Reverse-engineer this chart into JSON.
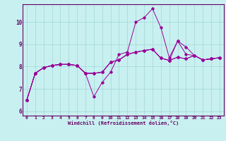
{
  "title": "",
  "xlabel": "Windchill (Refroidissement éolien,°C)",
  "ylabel": "",
  "bg_color": "#c8f0f0",
  "line_color": "#990099",
  "grid_color": "#a8dada",
  "axis_color": "#660066",
  "xlim": [
    -0.5,
    23.5
  ],
  "ylim": [
    5.8,
    10.8
  ],
  "xticks": [
    0,
    1,
    2,
    3,
    4,
    5,
    6,
    7,
    8,
    9,
    10,
    11,
    12,
    13,
    14,
    15,
    16,
    17,
    18,
    19,
    20,
    21,
    22,
    23
  ],
  "yticks": [
    6,
    7,
    8,
    9,
    10
  ],
  "series": [
    [
      6.5,
      7.7,
      7.95,
      8.05,
      8.1,
      8.1,
      8.05,
      7.7,
      6.65,
      7.3,
      7.75,
      8.55,
      8.65,
      10.0,
      10.2,
      10.6,
      9.75,
      8.4,
      9.15,
      8.55,
      8.5,
      8.3,
      8.35,
      8.4
    ],
    [
      6.5,
      7.7,
      7.95,
      8.05,
      8.1,
      8.1,
      8.05,
      7.7,
      7.7,
      7.75,
      8.2,
      8.3,
      8.55,
      8.65,
      8.72,
      8.78,
      8.38,
      8.28,
      8.42,
      8.35,
      8.5,
      8.3,
      8.35,
      8.4
    ],
    [
      6.5,
      7.7,
      7.95,
      8.05,
      8.1,
      8.1,
      8.05,
      7.7,
      7.7,
      7.75,
      8.2,
      8.3,
      8.55,
      8.65,
      8.72,
      8.78,
      8.38,
      8.28,
      9.15,
      8.88,
      8.5,
      8.3,
      8.35,
      8.4
    ],
    [
      6.5,
      7.7,
      7.95,
      8.05,
      8.1,
      8.1,
      8.05,
      7.7,
      7.7,
      7.75,
      8.2,
      8.3,
      8.55,
      8.65,
      8.72,
      8.78,
      8.38,
      8.28,
      8.42,
      8.35,
      8.5,
      8.3,
      8.35,
      8.4
    ]
  ]
}
